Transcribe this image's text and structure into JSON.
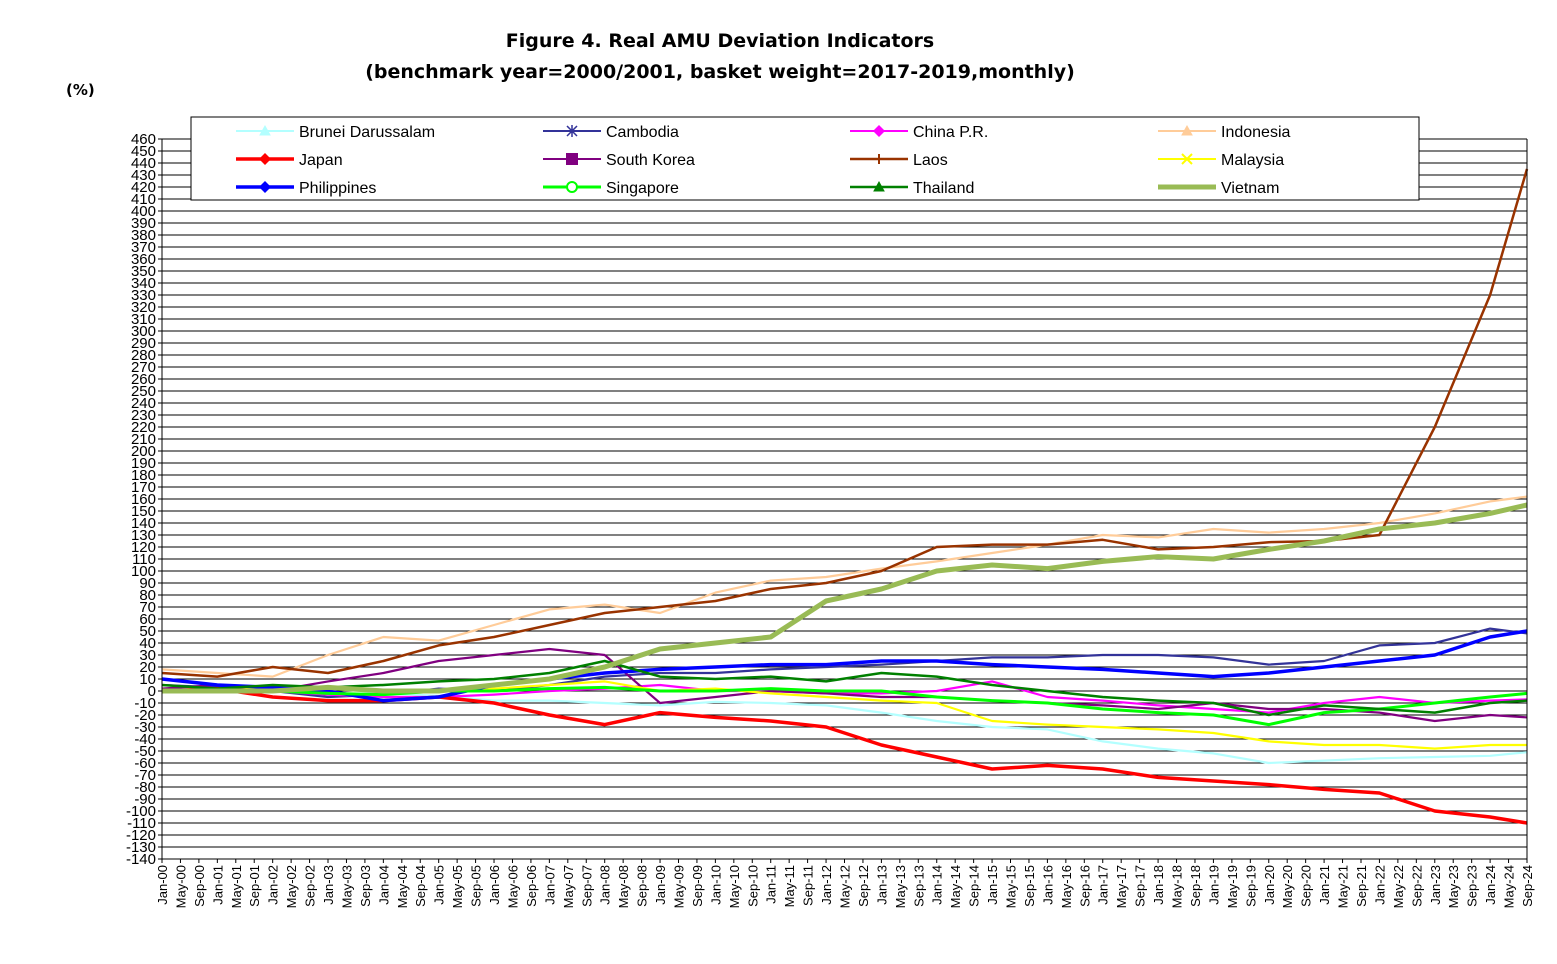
{
  "chart_data": {
    "type": "line",
    "title": "Figure 4. Real AMU Deviation Indicators",
    "subtitle": "(benchmark year=2000/2001, basket weight=2017-2019,monthly)",
    "ylabel": "(%)",
    "ylim": [
      -140,
      460
    ],
    "ytick_step": 10,
    "grid": "horizontal",
    "legend_position": "top",
    "x_ticks": [
      "Jan-00",
      "May-00",
      "Sep-00",
      "Jan-01",
      "May-01",
      "Sep-01",
      "Jan-02",
      "May-02",
      "Sep-02",
      "Jan-03",
      "May-03",
      "Sep-03",
      "Jan-04",
      "May-04",
      "Sep-04",
      "Jan-05",
      "May-05",
      "Sep-05",
      "Jan-06",
      "May-06",
      "Sep-06",
      "Jan-07",
      "May-07",
      "Sep-07",
      "Jan-08",
      "May-08",
      "Sep-08",
      "Jan-09",
      "May-09",
      "Sep-09",
      "Jan-10",
      "May-10",
      "Sep-10",
      "Jan-11",
      "May-11",
      "Sep-11",
      "Jan-12",
      "May-12",
      "Sep-12",
      "Jan-13",
      "May-13",
      "Sep-13",
      "Jan-14",
      "May-14",
      "Sep-14",
      "Jan-15",
      "May-15",
      "Sep-15",
      "Jan-16",
      "May-16",
      "Sep-16",
      "Jan-17",
      "May-17",
      "Sep-17",
      "Jan-18",
      "May-18",
      "Sep-18",
      "Jan-19",
      "May-19",
      "Sep-19",
      "Jan-20",
      "May-20",
      "Sep-20",
      "Jan-21",
      "May-21",
      "Sep-21",
      "Jan-22",
      "May-22",
      "Sep-22",
      "Jan-23",
      "May-23",
      "Sep-23",
      "Jan-24",
      "May-24",
      "Sep-24"
    ],
    "x": [
      "Jan-00",
      "Jan-01",
      "Jan-02",
      "Jan-03",
      "Jan-04",
      "Jan-05",
      "Jan-06",
      "Jan-07",
      "Jan-08",
      "Jan-09",
      "Jan-10",
      "Jan-11",
      "Jan-12",
      "Jan-13",
      "Jan-14",
      "Jan-15",
      "Jan-16",
      "Jan-17",
      "Jan-18",
      "Jan-19",
      "Jan-20",
      "Jan-21",
      "Jan-22",
      "Jan-23",
      "Jan-24",
      "Sep-24"
    ],
    "series": [
      {
        "name": "Brunei Darussalam",
        "color": "#b3ffff",
        "marker": "triangle",
        "values": [
          0,
          2,
          0,
          -3,
          -2,
          -4,
          -8,
          -8,
          -10,
          -12,
          -9,
          -10,
          -12,
          -18,
          -25,
          -30,
          -32,
          -42,
          -48,
          -52,
          -60,
          -58,
          -56,
          -55,
          -54,
          -51
        ]
      },
      {
        "name": "Cambodia",
        "color": "#333399",
        "marker": "star",
        "values": [
          5,
          3,
          0,
          -5,
          -3,
          2,
          0,
          5,
          12,
          15,
          15,
          18,
          20,
          22,
          25,
          28,
          28,
          30,
          30,
          28,
          22,
          25,
          38,
          40,
          52,
          48
        ]
      },
      {
        "name": "China P.R.",
        "color": "#ff00ff",
        "marker": "diamond",
        "values": [
          0,
          2,
          0,
          -3,
          -5,
          -5,
          -3,
          0,
          2,
          5,
          0,
          0,
          -2,
          -2,
          0,
          8,
          -5,
          -8,
          -12,
          -15,
          -18,
          -10,
          -5,
          -10,
          -8,
          -7
        ]
      },
      {
        "name": "Indonesia",
        "color": "#ffcc99",
        "marker": "triangle",
        "values": [
          18,
          15,
          12,
          30,
          45,
          42,
          55,
          68,
          72,
          65,
          82,
          92,
          95,
          102,
          108,
          115,
          122,
          130,
          128,
          135,
          132,
          135,
          140,
          148,
          158,
          162
        ]
      },
      {
        "name": "Japan",
        "color": "#ff0000",
        "marker": "diamond",
        "values": [
          0,
          2,
          -5,
          -8,
          -8,
          -5,
          -10,
          -20,
          -28,
          -18,
          -22,
          -25,
          -30,
          -45,
          -55,
          -65,
          -62,
          -65,
          -72,
          -75,
          -78,
          -82,
          -85,
          -100,
          -105,
          -110
        ]
      },
      {
        "name": "South Korea",
        "color": "#800080",
        "marker": "square",
        "values": [
          2,
          5,
          0,
          8,
          15,
          25,
          30,
          35,
          30,
          -10,
          -5,
          0,
          -2,
          -5,
          -5,
          -8,
          -10,
          -12,
          -15,
          -10,
          -15,
          -15,
          -18,
          -25,
          -20,
          -22
        ]
      },
      {
        "name": "Laos",
        "color": "#993300",
        "marker": "bar",
        "values": [
          15,
          12,
          20,
          15,
          25,
          38,
          45,
          55,
          65,
          70,
          75,
          85,
          90,
          100,
          120,
          122,
          122,
          126,
          118,
          120,
          124,
          125,
          130,
          220,
          330,
          435
        ]
      },
      {
        "name": "Malaysia",
        "color": "#ffff00",
        "marker": "x",
        "values": [
          0,
          0,
          3,
          2,
          0,
          0,
          2,
          5,
          8,
          0,
          2,
          -2,
          -5,
          -8,
          -10,
          -25,
          -28,
          -30,
          -32,
          -35,
          -42,
          -45,
          -45,
          -48,
          -45,
          -45
        ]
      },
      {
        "name": "Philippines",
        "color": "#0000ff",
        "marker": "diamond",
        "values": [
          10,
          5,
          3,
          0,
          -8,
          -5,
          5,
          10,
          15,
          18,
          20,
          22,
          22,
          25,
          25,
          22,
          20,
          18,
          15,
          12,
          15,
          20,
          25,
          30,
          45,
          50
        ]
      },
      {
        "name": "Singapore",
        "color": "#00ff00",
        "marker": "circle",
        "values": [
          0,
          0,
          0,
          -2,
          -3,
          0,
          0,
          2,
          3,
          0,
          0,
          2,
          0,
          0,
          -5,
          -8,
          -10,
          -15,
          -18,
          -20,
          -28,
          -18,
          -15,
          -10,
          -5,
          -2
        ]
      },
      {
        "name": "Thailand",
        "color": "#008000",
        "marker": "triangle",
        "values": [
          5,
          2,
          5,
          3,
          5,
          8,
          10,
          15,
          25,
          12,
          10,
          12,
          8,
          15,
          12,
          5,
          0,
          -5,
          -8,
          -10,
          -20,
          -12,
          -15,
          -18,
          -10,
          -8
        ]
      },
      {
        "name": "Vietnam",
        "color": "#99bb55",
        "marker": "none",
        "values": [
          0,
          0,
          0,
          3,
          0,
          0,
          5,
          10,
          20,
          35,
          40,
          45,
          75,
          85,
          100,
          105,
          102,
          108,
          112,
          110,
          118,
          125,
          135,
          140,
          148,
          155
        ]
      }
    ]
  }
}
